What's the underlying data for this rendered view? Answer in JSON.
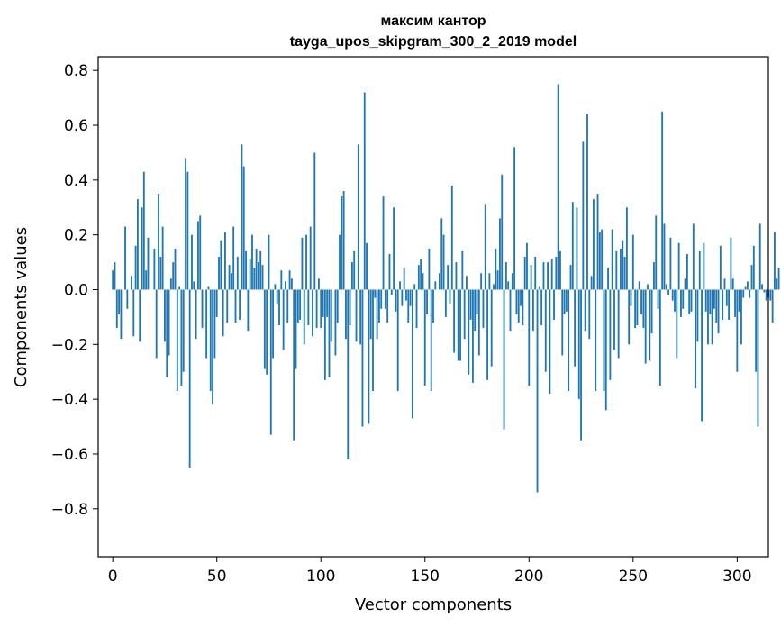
{
  "chart_data": {
    "type": "bar",
    "title": "максим кантор",
    "subtitle": "tayga_upos_skipgram_300_2_2019 model",
    "xlabel": "Vector components",
    "ylabel": "Components values",
    "xlim": [
      -7,
      315
    ],
    "ylim": [
      -0.975,
      0.85
    ],
    "x_ticks": [
      0,
      50,
      100,
      150,
      200,
      250,
      300
    ],
    "x_tick_labels": [
      "0",
      "50",
      "100",
      "150",
      "200",
      "250",
      "300"
    ],
    "y_ticks": [
      -0.8,
      -0.6,
      -0.4,
      -0.2,
      0.0,
      0.2,
      0.4,
      0.6,
      0.8
    ],
    "y_tick_labels": [
      "−0.8",
      "−0.6",
      "−0.4",
      "−0.2",
      "0.0",
      "0.2",
      "0.4",
      "0.6",
      "0.8"
    ],
    "bar_color": "#1f77b4",
    "values": [
      0.07,
      0.1,
      -0.14,
      -0.09,
      -0.18,
      0.0,
      0.23,
      -0.07,
      0.0,
      0.05,
      -0.17,
      0.16,
      0.33,
      -0.19,
      0.3,
      0.43,
      0.07,
      0.19,
      0.0,
      0.0,
      0.15,
      -0.25,
      0.35,
      0.12,
      0.23,
      -0.19,
      -0.32,
      -0.24,
      0.04,
      0.1,
      0.15,
      -0.37,
      0.01,
      -0.35,
      -0.3,
      0.48,
      0.43,
      -0.65,
      0.2,
      0.03,
      -0.18,
      0.25,
      0.27,
      -0.14,
      0.0,
      -0.25,
      0.01,
      -0.37,
      -0.42,
      -0.25,
      -0.1,
      0.12,
      0.18,
      -0.17,
      0.21,
      -0.12,
      0.09,
      0.06,
      0.23,
      -0.12,
      0.12,
      -0.11,
      0.53,
      0.45,
      0.14,
      -0.15,
      0.11,
      0.2,
      0.08,
      0.15,
      0.1,
      0.14,
      0.09,
      -0.29,
      -0.31,
      0.2,
      -0.53,
      -0.25,
      0.02,
      -0.05,
      -0.13,
      0.07,
      -0.22,
      0.03,
      -0.12,
      0.07,
      0.04,
      -0.55,
      -0.29,
      -0.12,
      -0.11,
      0.19,
      -0.2,
      0.2,
      -0.13,
      0.23,
      -0.17,
      0.5,
      -0.14,
      0.04,
      -0.14,
      -0.1,
      -0.33,
      -0.1,
      -0.32,
      -0.19,
      0.0,
      -0.24,
      -0.12,
      0.2,
      0.34,
      0.36,
      -0.18,
      -0.62,
      -0.13,
      0.1,
      0.14,
      -0.19,
      0.53,
      -0.2,
      -0.5,
      0.72,
      0.17,
      -0.49,
      -0.18,
      -0.37,
      -0.03,
      -0.18,
      -0.12,
      -0.07,
      0.34,
      -0.07,
      -0.12,
      0.13,
      -0.02,
      0.3,
      -0.08,
      -0.37,
      0.03,
      -0.06,
      0.08,
      -0.04,
      -0.12,
      -0.06,
      -0.47,
      0.02,
      -0.14,
      0.09,
      0.11,
      0.06,
      -0.35,
      -0.09,
      0.15,
      -0.37,
      -0.12,
      0.03,
      0.0,
      0.06,
      0.26,
      0.2,
      -0.1,
      0.09,
      -0.05,
      0.38,
      -0.23,
      0.1,
      -0.26,
      -0.26,
      0.14,
      -0.18,
      0.05,
      -0.31,
      -0.11,
      -0.34,
      -0.15,
      -0.09,
      -0.24,
      0.06,
      -0.14,
      0.31,
      -0.33,
      0.06,
      -0.28,
      0.02,
      0.15,
      0.07,
      0.26,
      0.42,
      -0.51,
      0.1,
      0.03,
      -0.15,
      0.06,
      0.52,
      -0.09,
      -0.12,
      -0.06,
      -0.13,
      0.12,
      0.17,
      -0.35,
      0.09,
      -0.15,
      0.12,
      -0.74,
      0.01,
      -0.13,
      0.1,
      -0.3,
      0.1,
      -0.38,
      0.11,
      -0.11,
      0.12,
      0.75,
      0.14,
      -0.24,
      -0.09,
      -0.08,
      -0.37,
      0.09,
      0.32,
      -0.28,
      0.3,
      -0.4,
      -0.55,
      0.54,
      -0.15,
      0.64,
      -0.18,
      0.05,
      0.33,
      -0.37,
      0.35,
      0.21,
      0.22,
      -0.37,
      -0.44,
      0.08,
      -0.33,
      0.22,
      -0.22,
      0.14,
      -0.25,
      0.15,
      0.18,
      0.12,
      0.3,
      -0.2,
      -0.06,
      0.2,
      -0.14,
      -0.13,
      0.03,
      -0.09,
      -0.14,
      -0.27,
      0.02,
      -0.26,
      -0.16,
      0.1,
      0.27,
      -0.07,
      -0.35,
      0.65,
      0.24,
      0.02,
      -0.02,
      0.19,
      -0.04,
      -0.08,
      -0.25,
      0.17,
      -0.1,
      -0.07,
      0.04,
      0.13,
      -0.09,
      -0.08,
      0.24,
      -0.36,
      -0.19,
      0.14,
      -0.48,
      0.17,
      -0.08,
      -0.2,
      -0.09,
      -0.2,
      -0.07,
      -0.12,
      -0.16,
      0.16,
      -0.11,
      0.04,
      -0.06,
      -0.11,
      0.19,
      0.04,
      -0.1,
      -0.3,
      -0.08,
      -0.2,
      -0.03,
      0.01,
      0.03,
      -0.03,
      0.09,
      0.16,
      -0.3,
      -0.5,
      0.24,
      0.02,
      -0.01,
      -0.04,
      -0.03,
      -0.04,
      -0.12,
      0.21,
      0.04,
      0.08
    ]
  }
}
